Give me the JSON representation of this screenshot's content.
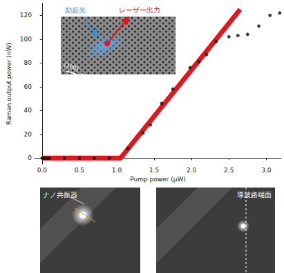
{
  "chart_data": {
    "type": "scatter",
    "x_label": "Pump power (μW)",
    "y_label": "Raman output power (nW)",
    "xlim": [
      -0.1,
      3.2
    ],
    "ylim": [
      -5,
      130
    ],
    "xticks": [
      {
        "value": 0,
        "label": "0.0"
      },
      0.5,
      {
        "value": 1,
        "label": "1.0"
      },
      1.5,
      {
        "value": 2,
        "label": "2.0"
      },
      2.5,
      {
        "value": 3,
        "label": "3.0"
      }
    ],
    "yticks": [
      0,
      20,
      40,
      60,
      80,
      100,
      120
    ],
    "grid": false,
    "series": [
      {
        "type": "line",
        "color": "#e8141b",
        "line_style": "solid",
        "x": [
          0,
          1.05,
          2.65
        ],
        "values": [
          0,
          0,
          125
        ]
      },
      {
        "type": "scatter",
        "color": "#111111",
        "marker": "circle",
        "x": [
          0,
          0.02,
          0.04,
          0.06,
          0.08,
          0.1,
          0.3,
          0.5,
          0.7,
          0.9,
          1.15,
          1.35,
          1.45,
          1.6,
          1.75,
          1.98,
          2.1,
          2.2,
          2.33,
          2.5,
          2.62,
          2.75,
          2.9,
          3.05,
          3.18
        ],
        "values": [
          0,
          0,
          0,
          0,
          0,
          0,
          0,
          0,
          0,
          0,
          8,
          21,
          28,
          46,
          58,
          76,
          81,
          87,
          98,
          102,
          103,
          104,
          111,
          120,
          122
        ]
      }
    ]
  },
  "inset": {
    "excitation_label": "励起光",
    "excitation_color": "#3a8fd6",
    "output_label": "レーザー出力",
    "output_color": "#e8141b",
    "direction_label": "[100]"
  },
  "photos": [
    {
      "label": "ナノ共振器"
    },
    {
      "label": "導波路端面"
    }
  ]
}
